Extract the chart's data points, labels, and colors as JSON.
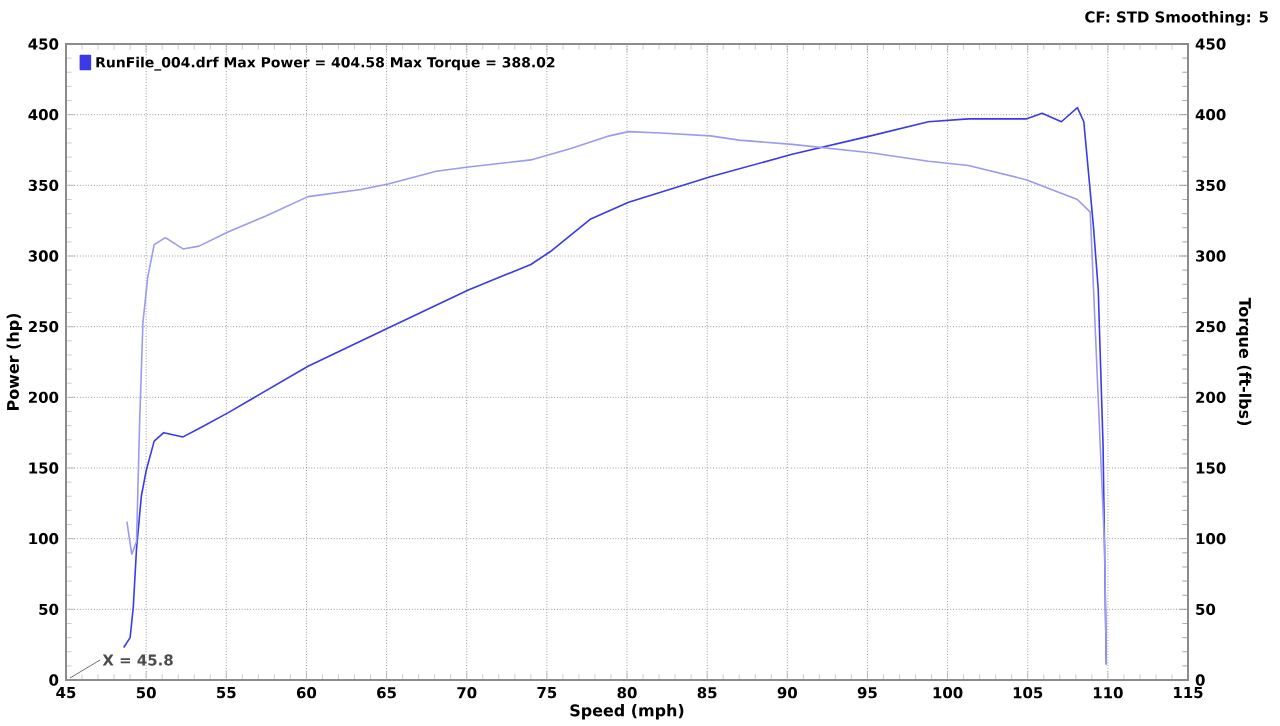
{
  "chart_data": {
    "type": "line",
    "xlabel": "Speed (mph)",
    "ylabel": "Power (hp)",
    "y2label": "Torque (ft-lbs)",
    "xlim": [
      45,
      115
    ],
    "xticks": [
      45,
      50,
      55,
      60,
      65,
      70,
      75,
      80,
      85,
      90,
      95,
      100,
      105,
      110,
      115
    ],
    "ylim": [
      0,
      450
    ],
    "yticks": [
      0,
      50,
      100,
      150,
      200,
      250,
      300,
      350,
      400,
      450
    ],
    "y2lim": [
      0,
      450
    ],
    "y2ticks": [
      0,
      50,
      100,
      150,
      200,
      250,
      300,
      350,
      400,
      450
    ],
    "grid": true,
    "legend": "top left",
    "line_style": "solid",
    "series": [
      {
        "name": "RunFile_004.drf Max Power = 404.58     Max Torque = 388.02",
        "color": "#3a3ae6",
        "x": [
          48.6,
          49.0,
          49.2,
          49.4,
          49.7,
          50.0,
          50.5,
          51.1,
          52.3,
          53.3,
          55.1,
          60.1,
          65.1,
          70.1,
          74.0,
          75.2,
          77.7,
          80.1,
          85.2,
          90.3,
          95.2,
          98.8,
          101.3,
          104.9,
          105.9,
          107.1,
          108.1,
          108.5,
          109.1,
          109.4,
          109.7,
          109.9
        ],
        "values": [
          23,
          30,
          52,
          93,
          130,
          148,
          169,
          175,
          172,
          178,
          189,
          222,
          249,
          276,
          294,
          303,
          326,
          338,
          356,
          372,
          385,
          395,
          397,
          397,
          401,
          395,
          405,
          395,
          321,
          276,
          166,
          11
        ]
      },
      {
        "color": "#9a9af0",
        "axis": "y2",
        "x": [
          48.8,
          49.1,
          49.4,
          49.6,
          49.8,
          50.1,
          50.5,
          51.2,
          52.3,
          53.3,
          55.1,
          57.4,
          60.1,
          63.4,
          65.1,
          68.1,
          70.1,
          74.0,
          76.5,
          78.9,
          80.1,
          82.1,
          85.2,
          87.0,
          90.3,
          95.2,
          98.8,
          101.3,
          104.9,
          108.1,
          108.9,
          109.8,
          109.9
        ],
        "values": [
          112,
          89,
          98,
          185,
          253,
          285,
          308,
          313,
          305,
          307,
          317,
          328,
          342,
          347,
          351,
          360,
          363,
          368,
          376,
          385,
          388,
          387,
          385,
          382,
          379,
          373,
          367,
          364,
          354,
          340,
          331,
          93,
          11
        ]
      }
    ],
    "annotations": [
      "CF: STD  Smoothing: 5",
      "X = 45.8"
    ]
  }
}
